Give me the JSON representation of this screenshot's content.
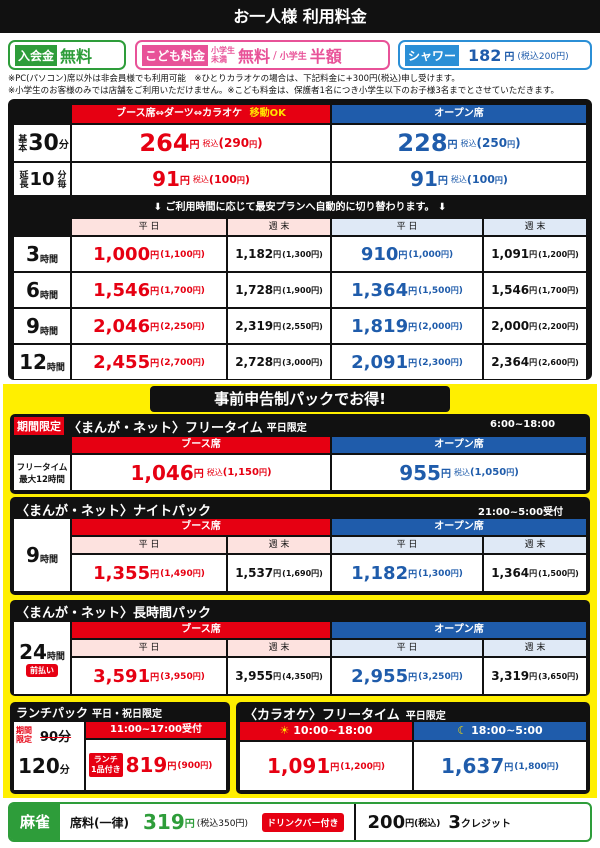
{
  "header": {
    "title": "お一人様 利用料金"
  },
  "top": {
    "entry": {
      "label": "入会金",
      "value": "無料"
    },
    "kids": {
      "label": "こども料金",
      "cat1": "小学生未満",
      "val1": "無料",
      "sep": "/",
      "cat2": "小学生",
      "val2": "半額"
    },
    "shower": {
      "label": "シャワー",
      "price": "182",
      "unit": "円",
      "tax": "(税込200円)"
    }
  },
  "notes": [
    "※PC(パソコン)席以外は非会員様でも利用可能　※ひとりカラオケの場合は、下記料金に+300円(税込)申し受けます。",
    "※小学生のお客様のみでは店舗をご利用いただけません。※こども料金は、保護者1名につき小学生以下のお子様3名までとさせていただきます。"
  ],
  "main": {
    "booth_head": "ブース席⇔ダーツ⇔カラオケ",
    "move_ok": "移動OK",
    "open_head": "オープン席",
    "basic": {
      "label1": "基本",
      "num": "30",
      "label2": "分",
      "booth": "264",
      "booth_tax": "290",
      "open": "228",
      "open_tax": "250"
    },
    "ext": {
      "label1": "延長",
      "num": "10",
      "label2": "分毎",
      "booth": "91",
      "booth_tax": "100",
      "open": "91",
      "open_tax": "100"
    },
    "auto_notice": "ご利用時間に応じて最安プランへ自動的に切り替わります。",
    "weekday": "平 日",
    "weekend": "週 末",
    "yen": "円",
    "zeikomi": "税込",
    "rows": [
      {
        "hours": "3",
        "unit": "時間",
        "bw": "1,000",
        "bw_t": "1,100",
        "be": "1,182",
        "be_t": "1,300",
        "ow": "910",
        "ow_t": "1,000",
        "oe": "1,091",
        "oe_t": "1,200"
      },
      {
        "hours": "6",
        "unit": "時間",
        "bw": "1,546",
        "bw_t": "1,700",
        "be": "1,728",
        "be_t": "1,900",
        "ow": "1,364",
        "ow_t": "1,500",
        "oe": "1,546",
        "oe_t": "1,700"
      },
      {
        "hours": "9",
        "unit": "時間",
        "bw": "2,046",
        "bw_t": "2,250",
        "be": "2,319",
        "be_t": "2,550",
        "ow": "1,819",
        "ow_t": "2,000",
        "oe": "2,000",
        "oe_t": "2,200"
      },
      {
        "hours": "12",
        "unit": "時間",
        "bw": "2,455",
        "bw_t": "2,700",
        "be": "2,728",
        "be_t": "3,000",
        "ow": "2,091",
        "ow_t": "2,300",
        "oe": "2,364",
        "oe_t": "2,600"
      }
    ]
  },
  "packs": {
    "title": "事前申告制パックでお得!",
    "free": {
      "badge": "期間限定",
      "name": "〈まんが・ネット〉フリータイム",
      "cond": "平日限定",
      "time": "6:00~18:00",
      "booth_head": "ブース席",
      "open_head": "オープン席",
      "label1": "フリータイム",
      "label2": "最大12時間",
      "booth": "1,046",
      "booth_tax": "1,150",
      "open": "955",
      "open_tax": "1,050"
    },
    "night": {
      "name": "〈まんが・ネット〉ナイトパック",
      "time": "21:00~5:00受付",
      "booth_head": "ブース席",
      "open_head": "オープン席",
      "hours": "9",
      "unit": "時間",
      "bw": "1,355",
      "bw_t": "1,490",
      "be": "1,537",
      "be_t": "1,690",
      "ow": "1,182",
      "ow_t": "1,300",
      "oe": "1,364",
      "oe_t": "1,500"
    },
    "long": {
      "name": "〈まんが・ネット〉長時間パック",
      "booth_head": "ブース席",
      "open_head": "オープン席",
      "hours": "24",
      "unit": "時間",
      "prepay": "前払い",
      "bw": "3,591",
      "bw_t": "3,950",
      "be": "3,955",
      "be_t": "4,350",
      "ow": "2,955",
      "ow_t": "3,250",
      "oe": "3,319",
      "oe_t": "3,650"
    },
    "lunch": {
      "name": "ランチパック",
      "cond": "平日・祝日限定",
      "time": "11:00~17:00受付",
      "badge1": "期間",
      "badge2": "限定",
      "old": "90分",
      "mins": "120",
      "unit": "分",
      "drink1": "ランチ",
      "drink2": "1品付き",
      "price": "819",
      "tax": "900"
    },
    "karaoke": {
      "name": "〈カラオケ〉フリータイム",
      "cond": "平日限定",
      "day_time": "10:00~18:00",
      "night_time": "18:00~5:00",
      "day_price": "1,091",
      "day_tax": "1,200",
      "night_price": "1,637",
      "night_tax": "1,800"
    }
  },
  "mahjong": {
    "label": "麻雀",
    "fee_label": "席料(一律)",
    "price": "319",
    "tax": "(税込350円)",
    "drink": "ドリンクバー付き",
    "credit_price": "200",
    "credit_tax": "円(税込)",
    "credit": "3",
    "credit_unit": "クレジット"
  }
}
